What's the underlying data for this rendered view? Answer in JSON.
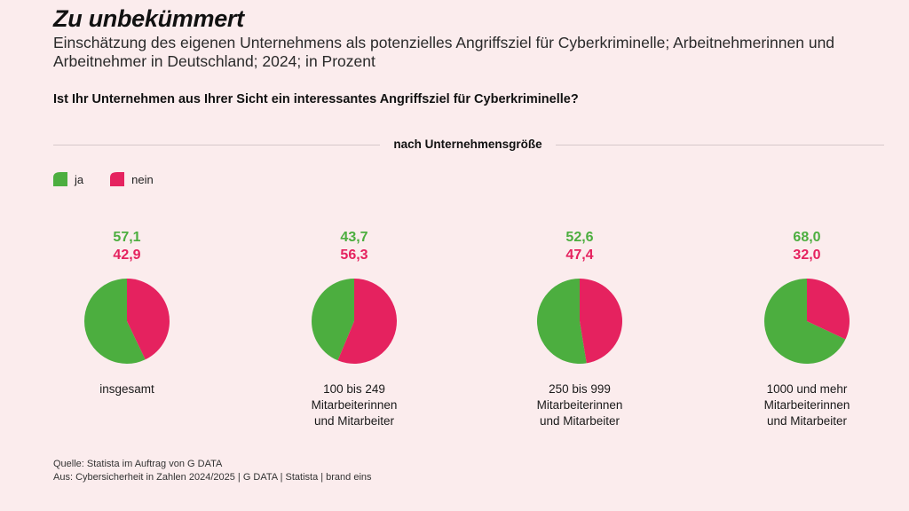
{
  "header": {
    "title": "Zu unbekümmert",
    "subtitle": "Einschätzung des eigenen Unternehmens als potenzielles Angriffsziel für Cyberkriminelle; Arbeitnehmerinnen und Arbeitnehmer in Deutschland; 2024; in Prozent",
    "question": "Ist Ihr Unternehmen aus Ihrer Sicht ein interessantes Angriffsziel für Cyberkriminelle?",
    "section_label": "nach Unternehmensgröße"
  },
  "legend": [
    {
      "label": "ja",
      "color": "#4cae3f"
    },
    {
      "label": "nein",
      "color": "#e5225f"
    }
  ],
  "chart_data": {
    "type": "pie",
    "series": [
      {
        "name": "ja",
        "color": "#4cae3f"
      },
      {
        "name": "nein",
        "color": "#e5225f"
      }
    ],
    "groups": [
      {
        "label": "insgesamt",
        "label_lines": [
          "insgesamt"
        ],
        "ja": "57,1",
        "nein": "42,9",
        "values": [
          57.1,
          42.9
        ]
      },
      {
        "label": "100 bis 249 Mitarbeiterinnen und Mitarbeiter",
        "label_lines": [
          "100 bis 249",
          "Mitarbeiterinnen",
          "und Mitarbeiter"
        ],
        "ja": "43,7",
        "nein": "56,3",
        "values": [
          43.7,
          56.3
        ]
      },
      {
        "label": "250 bis 999 Mitarbeiterinnen und Mitarbeiter",
        "label_lines": [
          "250 bis 999",
          "Mitarbeiterinnen",
          "und Mitarbeiter"
        ],
        "ja": "52,6",
        "nein": "47,4",
        "values": [
          52.6,
          47.4
        ]
      },
      {
        "label": "1000 und mehr Mitarbeiterinnen und Mitarbeiter",
        "label_lines": [
          "1000 und mehr",
          "Mitarbeiterinnen",
          "und Mitarbeiter"
        ],
        "ja": "68,0",
        "nein": "32,0",
        "values": [
          68.0,
          32.0
        ]
      }
    ]
  },
  "footer": {
    "source": "Quelle: Statista im Auftrag von G DATA",
    "origin": "Aus: Cybersicherheit in Zahlen 2024/2025 | G DATA | Statista | brand eins"
  }
}
